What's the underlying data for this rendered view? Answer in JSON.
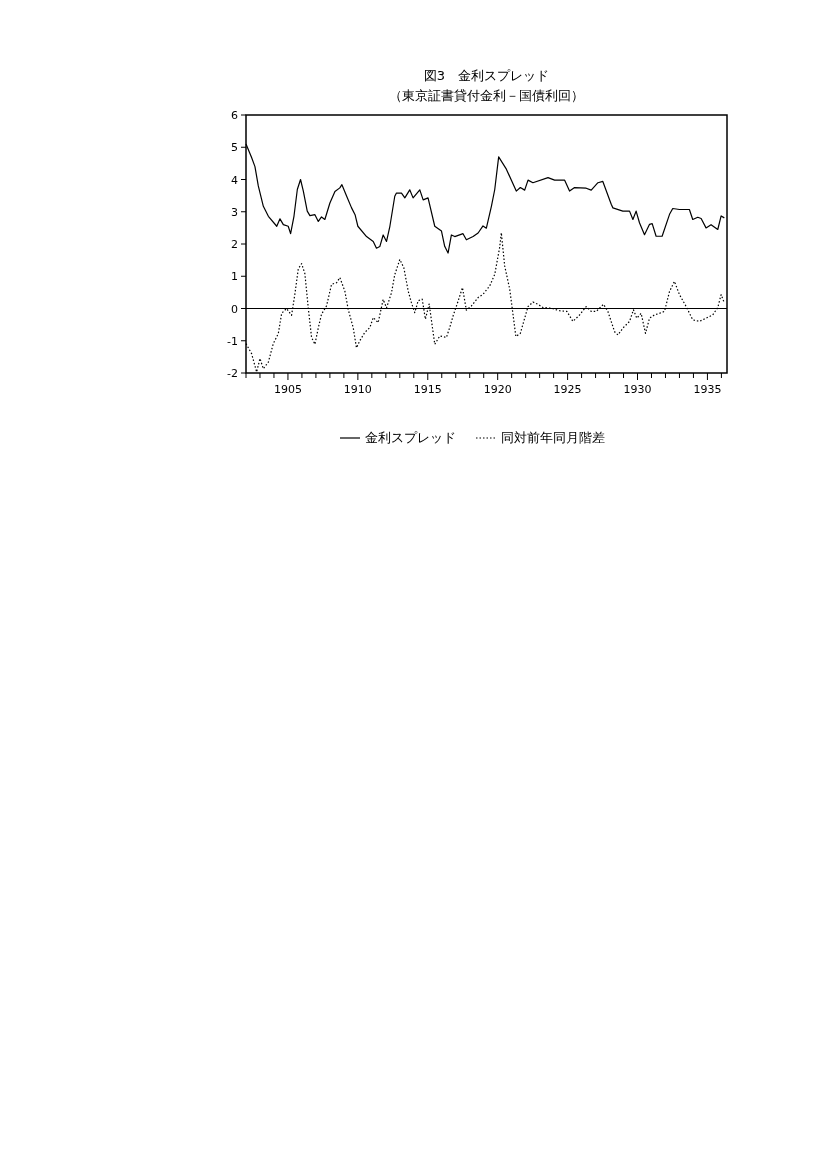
{
  "chart_data": {
    "type": "line",
    "title": "図3　金利スプレッド",
    "subtitle": "（東京証書貸付金利－国債利回）",
    "xlim": [
      1902,
      1936.4
    ],
    "ylim": [
      -2,
      6
    ],
    "yticks": [
      -2,
      -1,
      0,
      1,
      2,
      3,
      4,
      5,
      6
    ],
    "xticks": [
      {
        "value": 1902,
        "label": null
      },
      {
        "value": 1903,
        "label": null
      },
      {
        "value": 1904,
        "label": null
      },
      1905,
      {
        "value": 1906,
        "label": null
      },
      {
        "value": 1907,
        "label": null
      },
      {
        "value": 1908,
        "label": null
      },
      {
        "value": 1909,
        "label": null
      },
      1910,
      {
        "value": 1911,
        "label": null
      },
      {
        "value": 1912,
        "label": null
      },
      {
        "value": 1913,
        "label": null
      },
      {
        "value": 1914,
        "label": null
      },
      1915,
      {
        "value": 1916,
        "label": null
      },
      {
        "value": 1917,
        "label": null
      },
      {
        "value": 1918,
        "label": null
      },
      {
        "value": 1919,
        "label": null
      },
      1920,
      {
        "value": 1921,
        "label": null
      },
      {
        "value": 1922,
        "label": null
      },
      {
        "value": 1923,
        "label": null
      },
      {
        "value": 1924,
        "label": null
      },
      1925,
      {
        "value": 1926,
        "label": null
      },
      {
        "value": 1927,
        "label": null
      },
      {
        "value": 1928,
        "label": null
      },
      {
        "value": 1929,
        "label": null
      },
      1930,
      {
        "value": 1931,
        "label": null
      },
      {
        "value": 1932,
        "label": null
      },
      {
        "value": 1933,
        "label": null
      },
      {
        "value": 1934,
        "label": null
      },
      1935,
      {
        "value": 1936,
        "label": null
      }
    ],
    "grid": false,
    "legend": "bottom",
    "marker": "none",
    "ref_lines": [
      {
        "axis": "y",
        "value": 0,
        "color": "#000000",
        "line_style": "solid"
      }
    ],
    "series": [
      {
        "name": "金利スプレッド",
        "color": "#000000",
        "line_style": "solid",
        "x": [
          1902.0,
          1902.4,
          1902.64,
          1902.88,
          1903.24,
          1903.6,
          1904.2,
          1904.43,
          1904.67,
          1905.02,
          1905.19,
          1905.43,
          1905.67,
          1905.9,
          1906.1,
          1906.38,
          1906.57,
          1906.93,
          1907.17,
          1907.4,
          1907.64,
          1908.0,
          1908.36,
          1908.71,
          1908.86,
          1909.2,
          1909.55,
          1909.8,
          1910.0,
          1910.62,
          1911.1,
          1911.33,
          1911.57,
          1911.81,
          1912.05,
          1912.29,
          1912.64,
          1912.76,
          1913.12,
          1913.36,
          1913.71,
          1913.95,
          1914.43,
          1914.67,
          1915.02,
          1915.5,
          1915.98,
          1916.21,
          1916.45,
          1916.69,
          1916.93,
          1917.52,
          1917.76,
          1918.24,
          1918.6,
          1918.95,
          1919.19,
          1919.55,
          1919.79,
          1920.07,
          1920.62,
          1921.33,
          1921.62,
          1921.93,
          1922.17,
          1922.52,
          1923.6,
          1924.07,
          1924.79,
          1925.14,
          1925.5,
          1926.33,
          1926.69,
          1927.17,
          1927.52,
          1928.12,
          1928.24,
          1928.95,
          1929.43,
          1929.67,
          1929.9,
          1930.14,
          1930.5,
          1930.86,
          1931.05,
          1931.33,
          1931.76,
          1932.29,
          1932.52,
          1933.0,
          1933.71,
          1933.95,
          1934.31,
          1934.55,
          1934.9,
          1935.26,
          1935.74,
          1935.98,
          1936.21
        ],
        "values": [
          5.1,
          4.68,
          4.4,
          3.8,
          3.17,
          2.86,
          2.55,
          2.78,
          2.6,
          2.55,
          2.32,
          2.86,
          3.69,
          4.0,
          3.64,
          3.02,
          2.88,
          2.91,
          2.7,
          2.84,
          2.76,
          3.27,
          3.63,
          3.74,
          3.84,
          3.48,
          3.12,
          2.91,
          2.55,
          2.23,
          2.08,
          1.87,
          1.92,
          2.28,
          2.08,
          2.55,
          3.48,
          3.58,
          3.58,
          3.43,
          3.68,
          3.43,
          3.68,
          3.37,
          3.43,
          2.55,
          2.4,
          1.93,
          1.72,
          2.28,
          2.23,
          2.32,
          2.13,
          2.23,
          2.34,
          2.56,
          2.49,
          3.17,
          3.69,
          4.7,
          4.32,
          3.64,
          3.75,
          3.67,
          3.98,
          3.9,
          4.06,
          3.98,
          3.98,
          3.64,
          3.75,
          3.73,
          3.67,
          3.9,
          3.94,
          3.23,
          3.12,
          3.02,
          3.02,
          2.76,
          3.02,
          2.66,
          2.29,
          2.61,
          2.63,
          2.24,
          2.24,
          2.92,
          3.1,
          3.07,
          3.07,
          2.76,
          2.83,
          2.79,
          2.5,
          2.6,
          2.45,
          2.87,
          2.81
        ]
      },
      {
        "name": "同対前年同月階差",
        "color": "#000000",
        "line_style": "dotted",
        "x": [
          1902.0,
          1902.4,
          1902.76,
          1903.0,
          1903.24,
          1903.6,
          1903.95,
          1904.31,
          1904.55,
          1904.9,
          1905.26,
          1905.5,
          1905.74,
          1905.98,
          1906.21,
          1906.45,
          1906.69,
          1906.93,
          1907.17,
          1907.4,
          1907.76,
          1908.12,
          1908.48,
          1908.71,
          1909.07,
          1909.31,
          1909.67,
          1909.9,
          1910.14,
          1910.5,
          1910.86,
          1911.1,
          1911.45,
          1911.81,
          1912.05,
          1912.4,
          1912.64,
          1913.0,
          1913.29,
          1913.6,
          1913.83,
          1914.07,
          1914.31,
          1914.6,
          1914.83,
          1915.1,
          1915.5,
          1915.86,
          1916.33,
          1916.57,
          1916.81,
          1917.17,
          1917.48,
          1917.76,
          1918.12,
          1918.6,
          1918.95,
          1919.43,
          1919.79,
          1920.14,
          1920.26,
          1920.5,
          1920.86,
          1921.05,
          1921.3,
          1921.62,
          1921.93,
          1922.17,
          1922.52,
          1922.88,
          1923.24,
          1923.83,
          1924.43,
          1924.95,
          1925.38,
          1925.86,
          1926.33,
          1926.69,
          1927.05,
          1927.57,
          1927.88,
          1928.36,
          1928.6,
          1928.95,
          1929.43,
          1929.71,
          1929.95,
          1930.26,
          1930.57,
          1930.86,
          1931.21,
          1931.57,
          1931.93,
          1932.29,
          1932.64,
          1933.0,
          1933.48,
          1933.95,
          1934.43,
          1934.9,
          1935.38,
          1935.74,
          1935.98,
          1936.21
        ],
        "values": [
          -1.09,
          -1.4,
          -1.97,
          -1.55,
          -1.87,
          -1.66,
          -1.09,
          -0.78,
          -0.15,
          0.0,
          -0.21,
          0.46,
          1.23,
          1.39,
          1.08,
          0.03,
          -0.9,
          -1.11,
          -0.6,
          -0.18,
          0.08,
          0.75,
          0.8,
          0.96,
          0.54,
          -0.03,
          -0.6,
          -1.22,
          -1.0,
          -0.74,
          -0.59,
          -0.28,
          -0.44,
          0.28,
          0.02,
          0.48,
          1.05,
          1.52,
          1.26,
          0.54,
          0.18,
          -0.13,
          0.24,
          0.29,
          -0.33,
          0.14,
          -1.11,
          -0.85,
          -0.9,
          -0.59,
          -0.23,
          0.23,
          0.65,
          -0.05,
          0.08,
          0.34,
          0.44,
          0.7,
          1.06,
          1.89,
          2.35,
          1.32,
          0.6,
          -0.03,
          -0.87,
          -0.77,
          -0.3,
          0.06,
          0.2,
          0.13,
          0.03,
          0.01,
          -0.07,
          -0.09,
          -0.4,
          -0.2,
          0.06,
          -0.09,
          -0.09,
          0.13,
          -0.09,
          -0.72,
          -0.82,
          -0.61,
          -0.4,
          -0.04,
          -0.3,
          -0.15,
          -0.77,
          -0.3,
          -0.2,
          -0.15,
          -0.09,
          0.53,
          0.84,
          0.43,
          0.06,
          -0.35,
          -0.4,
          -0.3,
          -0.2,
          0.03,
          0.43,
          0.17
        ]
      }
    ]
  }
}
